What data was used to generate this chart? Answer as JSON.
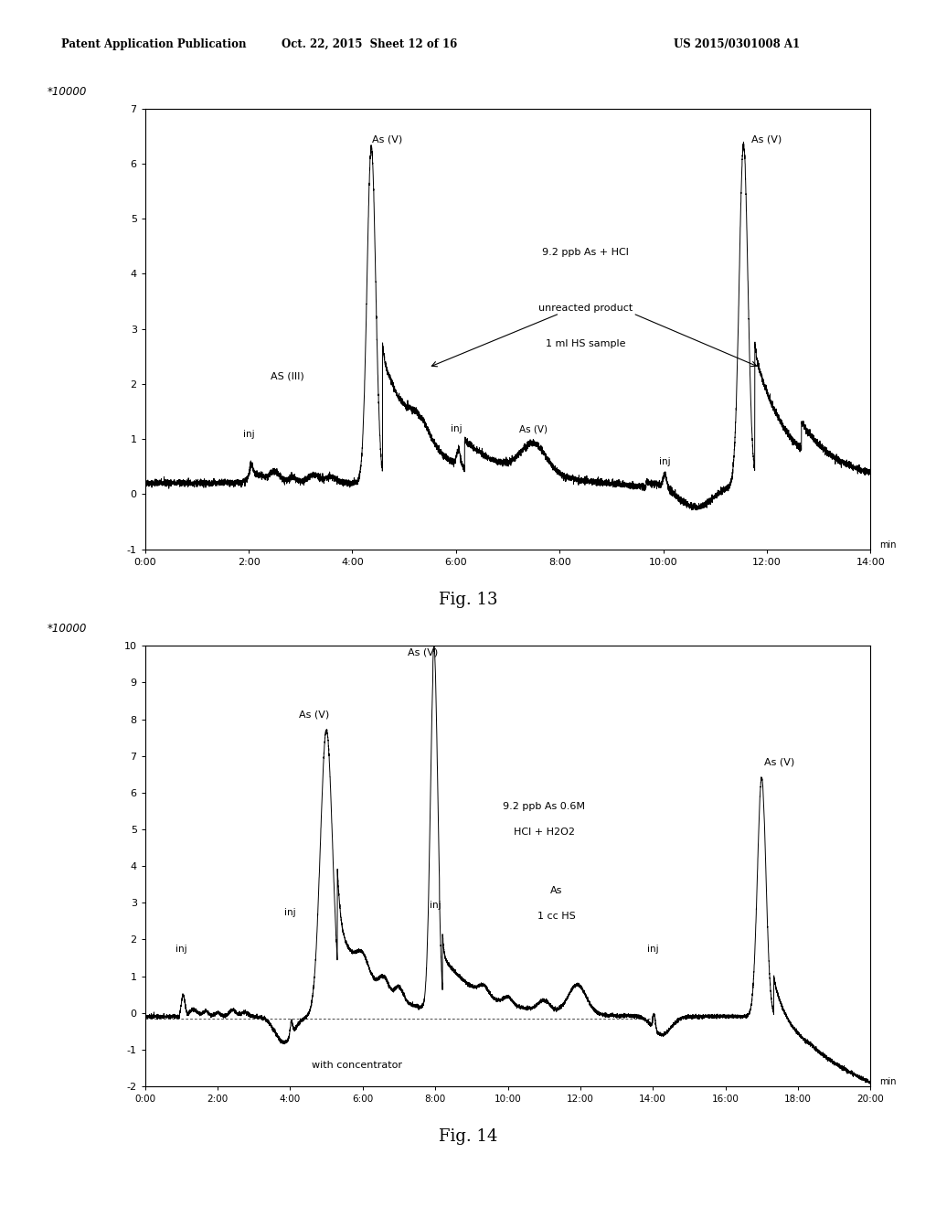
{
  "header_left": "Patent Application Publication",
  "header_center": "Oct. 22, 2015  Sheet 12 of 16",
  "header_right": "US 2015/0301008 A1",
  "fig13": {
    "ylabel": "*10000",
    "xlim_sec": [
      0,
      840
    ],
    "ylim": [
      -1,
      7
    ],
    "yticks": [
      -1,
      0,
      1,
      2,
      3,
      4,
      5,
      6,
      7
    ],
    "ytick_labels": [
      "-1",
      "0",
      "1",
      "2",
      "3",
      "4",
      "5",
      "6",
      "7"
    ],
    "xtick_secs": [
      0,
      120,
      240,
      360,
      480,
      600,
      720,
      840
    ],
    "xtick_labels": [
      "0:00",
      "2:00",
      "4:00",
      "6:00",
      "8:00",
      "10:00",
      "12:00",
      "14:00"
    ],
    "fig_label": "Fig. 13"
  },
  "fig14": {
    "ylabel": "*10000",
    "xlim_sec": [
      0,
      1200
    ],
    "ylim": [
      -2,
      10
    ],
    "yticks": [
      -2,
      -1,
      0,
      1,
      2,
      3,
      4,
      5,
      6,
      7,
      8,
      9,
      10
    ],
    "ytick_labels": [
      "-2",
      "-1",
      "0",
      "1",
      "2",
      "3",
      "4",
      "5",
      "6",
      "7",
      "8",
      "9",
      "10"
    ],
    "xtick_secs": [
      0,
      120,
      240,
      360,
      480,
      600,
      720,
      840,
      960,
      1080,
      1200
    ],
    "xtick_labels": [
      "0:00",
      "2:00",
      "4:00",
      "6:00",
      "8:00",
      "10:00",
      "12:00",
      "14:00",
      "16:00",
      "18:00",
      "20:00"
    ],
    "fig_label": "Fig. 14"
  },
  "bg_color": "#ffffff",
  "line_color": "#000000"
}
